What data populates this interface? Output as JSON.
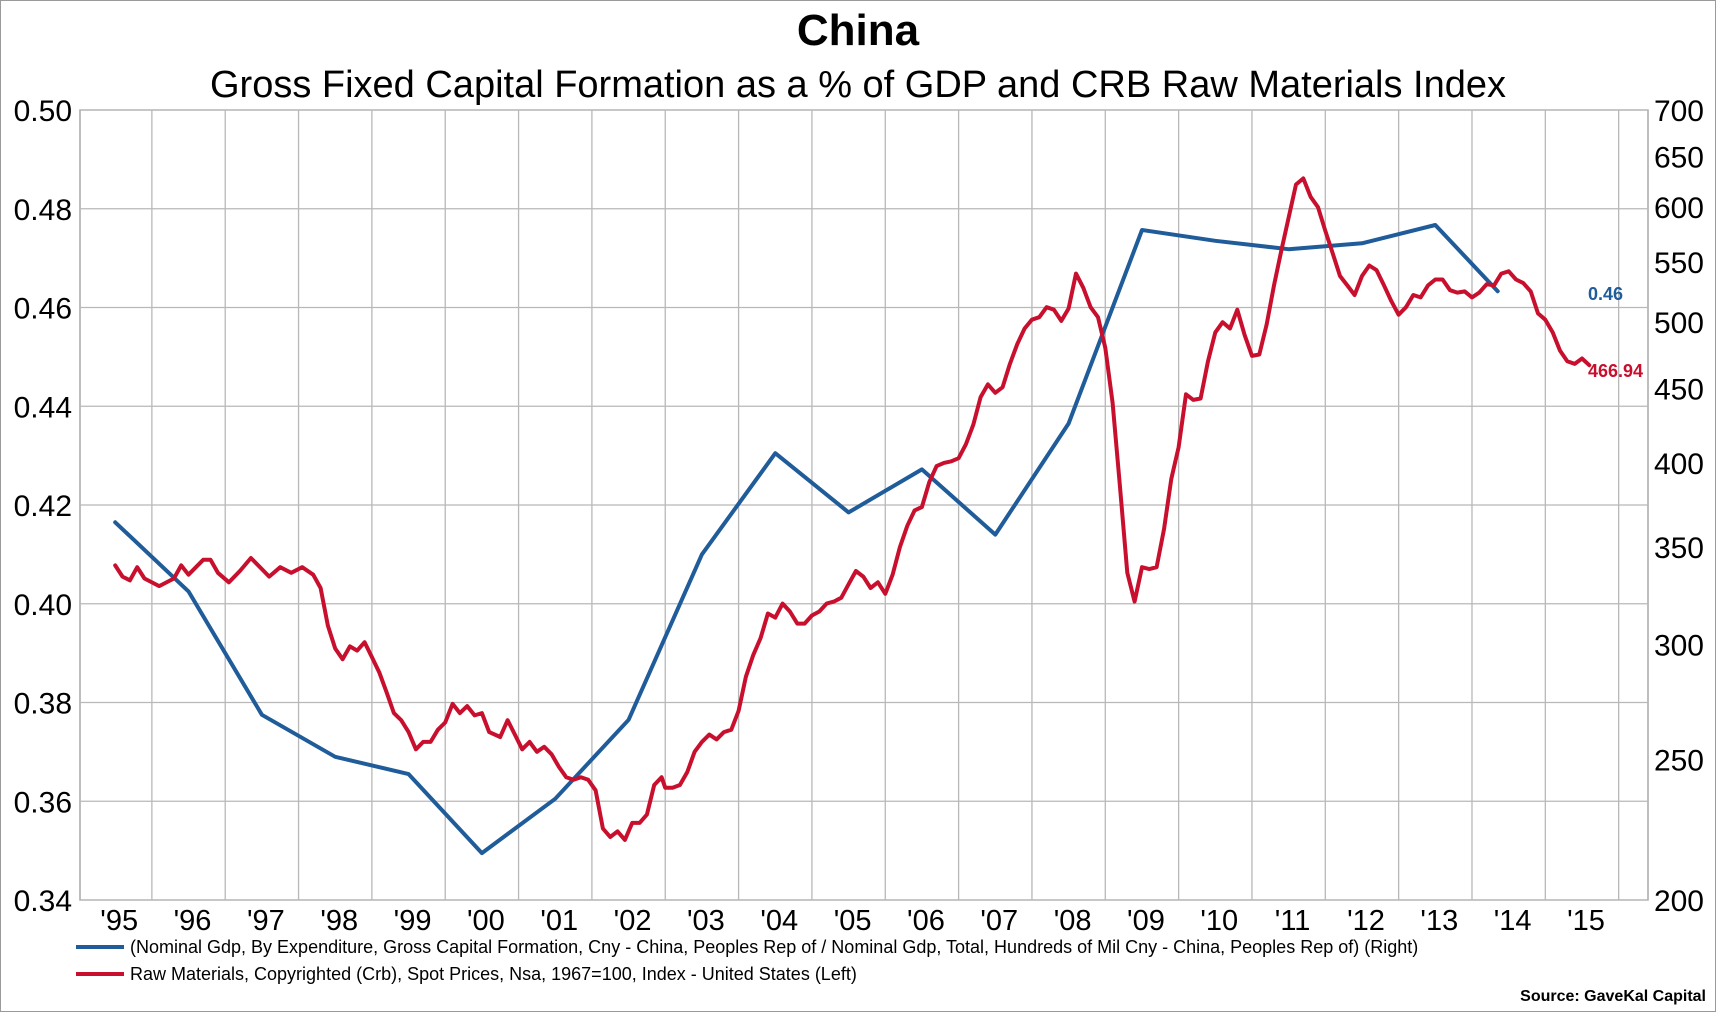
{
  "header": {
    "title": "China",
    "subtitle": "Gross Fixed Capital Formation as a % of GDP and CRB Raw Materials Index"
  },
  "source": "Source: GaveKal Capital",
  "colors": {
    "blue": "#1F5C99",
    "red": "#C8102E",
    "grid": "#b8b8b8"
  },
  "chart_data": {
    "type": "line",
    "grid": true,
    "legend_position": "bottom",
    "x_ticks": [
      "'95",
      "'96",
      "'97",
      "'98",
      "'99",
      "'00",
      "'01",
      "'02",
      "'03",
      "'04",
      "'05",
      "'06",
      "'07",
      "'08",
      "'09",
      "'10",
      "'11",
      "'12",
      "'13",
      "'14",
      "'15"
    ],
    "left_axis": {
      "ticks": [
        "0.50",
        "0.48",
        "0.46",
        "0.44",
        "0.42",
        "0.40",
        "0.38",
        "0.36",
        "0.34"
      ],
      "min": 0.34,
      "max": 0.5
    },
    "right_axis": {
      "ticks": [
        "700",
        "650",
        "600",
        "550",
        "500",
        "450",
        "400",
        "350",
        "300",
        "250",
        "200"
      ],
      "min": 200,
      "max": 700,
      "scale": "log"
    },
    "series": [
      {
        "name": "(Nominal Gdp, By Expenditure, Gross Capital Formation, Cny - China, Peoples Rep of / Nominal Gdp, Total, Hundreds of Mil Cny - China, Peoples Rep of)  (Right)",
        "axis": "left",
        "color": "#1F5C99",
        "end_label": "0.46",
        "points": [
          [
            1995.0,
            0.4165
          ],
          [
            1996.0,
            0.4025
          ],
          [
            1997.0,
            0.3775
          ],
          [
            1998.0,
            0.369
          ],
          [
            1999.0,
            0.3655
          ],
          [
            2000.0,
            0.3495
          ],
          [
            2001.0,
            0.3605
          ],
          [
            2002.0,
            0.3765
          ],
          [
            2003.0,
            0.41
          ],
          [
            2004.0,
            0.4305
          ],
          [
            2005.0,
            0.4185
          ],
          [
            2006.0,
            0.4272
          ],
          [
            2007.0,
            0.414
          ],
          [
            2008.0,
            0.4365
          ],
          [
            2009.0,
            0.4757
          ],
          [
            2010.0,
            0.4735
          ],
          [
            2011.0,
            0.4718
          ],
          [
            2012.0,
            0.473
          ],
          [
            2013.0,
            0.4767
          ],
          [
            2013.85,
            0.4633
          ]
        ]
      },
      {
        "name": "Raw Materials, Copyrighted (Crb), Spot Prices, Nsa, 1967=100, Index - United States  (Left)",
        "axis": "right",
        "color": "#C8102E",
        "end_label": "466.94",
        "points": [
          [
            1995.0,
            340
          ],
          [
            1995.1,
            334
          ],
          [
            1995.2,
            332
          ],
          [
            1995.3,
            339
          ],
          [
            1995.4,
            333
          ],
          [
            1995.6,
            329
          ],
          [
            1995.8,
            333
          ],
          [
            1995.9,
            340
          ],
          [
            1996.0,
            335
          ],
          [
            1996.2,
            343
          ],
          [
            1996.3,
            343
          ],
          [
            1996.4,
            336
          ],
          [
            1996.55,
            331
          ],
          [
            1996.7,
            337
          ],
          [
            1996.85,
            344
          ],
          [
            1997.0,
            338
          ],
          [
            1997.1,
            334
          ],
          [
            1997.25,
            339
          ],
          [
            1997.4,
            336
          ],
          [
            1997.55,
            339
          ],
          [
            1997.7,
            335
          ],
          [
            1997.8,
            328
          ],
          [
            1997.9,
            309
          ],
          [
            1998.0,
            298
          ],
          [
            1998.1,
            293
          ],
          [
            1998.2,
            299
          ],
          [
            1998.3,
            297
          ],
          [
            1998.4,
            301
          ],
          [
            1998.5,
            294
          ],
          [
            1998.6,
            287
          ],
          [
            1998.7,
            278
          ],
          [
            1998.8,
            269
          ],
          [
            1998.9,
            266
          ],
          [
            1999.0,
            261
          ],
          [
            1999.1,
            254
          ],
          [
            1999.2,
            257
          ],
          [
            1999.3,
            257
          ],
          [
            1999.4,
            262
          ],
          [
            1999.5,
            265
          ],
          [
            1999.6,
            273
          ],
          [
            1999.7,
            269
          ],
          [
            1999.8,
            272
          ],
          [
            1999.9,
            268
          ],
          [
            2000.0,
            269
          ],
          [
            2000.1,
            261
          ],
          [
            2000.25,
            259
          ],
          [
            2000.35,
            266
          ],
          [
            2000.45,
            260
          ],
          [
            2000.55,
            254
          ],
          [
            2000.65,
            257
          ],
          [
            2000.75,
            253
          ],
          [
            2000.85,
            255
          ],
          [
            2000.95,
            252
          ],
          [
            2001.05,
            247
          ],
          [
            2001.15,
            243
          ],
          [
            2001.25,
            242
          ],
          [
            2001.35,
            243
          ],
          [
            2001.45,
            242
          ],
          [
            2001.55,
            238
          ],
          [
            2001.65,
            224
          ],
          [
            2001.75,
            221
          ],
          [
            2001.85,
            223
          ],
          [
            2001.95,
            220
          ],
          [
            2002.05,
            226
          ],
          [
            2002.15,
            226
          ],
          [
            2002.25,
            229
          ],
          [
            2002.35,
            240
          ],
          [
            2002.45,
            243
          ],
          [
            2002.5,
            239
          ],
          [
            2002.6,
            239
          ],
          [
            2002.7,
            240
          ],
          [
            2002.8,
            245
          ],
          [
            2002.9,
            253
          ],
          [
            2003.0,
            257
          ],
          [
            2003.1,
            260
          ],
          [
            2003.2,
            258
          ],
          [
            2003.3,
            261
          ],
          [
            2003.4,
            262
          ],
          [
            2003.5,
            270
          ],
          [
            2003.6,
            285
          ],
          [
            2003.7,
            295
          ],
          [
            2003.8,
            303
          ],
          [
            2003.9,
            315
          ],
          [
            2004.0,
            313
          ],
          [
            2004.1,
            320
          ],
          [
            2004.2,
            316
          ],
          [
            2004.3,
            310
          ],
          [
            2004.4,
            310
          ],
          [
            2004.5,
            314
          ],
          [
            2004.6,
            316
          ],
          [
            2004.7,
            320
          ],
          [
            2004.8,
            321
          ],
          [
            2004.9,
            323
          ],
          [
            2005.0,
            330
          ],
          [
            2005.1,
            337
          ],
          [
            2005.2,
            334
          ],
          [
            2005.3,
            328
          ],
          [
            2005.4,
            331
          ],
          [
            2005.5,
            325
          ],
          [
            2005.6,
            335
          ],
          [
            2005.7,
            350
          ],
          [
            2005.8,
            362
          ],
          [
            2005.9,
            371
          ],
          [
            2006.0,
            373
          ],
          [
            2006.1,
            388
          ],
          [
            2006.2,
            398
          ],
          [
            2006.3,
            400
          ],
          [
            2006.4,
            401
          ],
          [
            2006.5,
            403
          ],
          [
            2006.6,
            412
          ],
          [
            2006.7,
            425
          ],
          [
            2006.8,
            444
          ],
          [
            2006.9,
            453
          ],
          [
            2007.0,
            447
          ],
          [
            2007.1,
            451
          ],
          [
            2007.2,
            468
          ],
          [
            2007.3,
            483
          ],
          [
            2007.4,
            495
          ],
          [
            2007.5,
            502
          ],
          [
            2007.6,
            504
          ],
          [
            2007.7,
            512
          ],
          [
            2007.8,
            510
          ],
          [
            2007.9,
            501
          ],
          [
            2008.0,
            511
          ],
          [
            2008.1,
            540
          ],
          [
            2008.2,
            528
          ],
          [
            2008.3,
            512
          ],
          [
            2008.4,
            504
          ],
          [
            2008.5,
            480
          ],
          [
            2008.6,
            440
          ],
          [
            2008.7,
            385
          ],
          [
            2008.8,
            336
          ],
          [
            2008.9,
            321
          ],
          [
            2009.0,
            339
          ],
          [
            2009.1,
            338
          ],
          [
            2009.2,
            339
          ],
          [
            2009.3,
            360
          ],
          [
            2009.4,
            390
          ],
          [
            2009.5,
            410
          ],
          [
            2009.6,
            446
          ],
          [
            2009.7,
            442
          ],
          [
            2009.8,
            443
          ],
          [
            2009.9,
            470
          ],
          [
            2010.0,
            492
          ],
          [
            2010.1,
            500
          ],
          [
            2010.2,
            495
          ],
          [
            2010.3,
            510
          ],
          [
            2010.4,
            490
          ],
          [
            2010.5,
            474
          ],
          [
            2010.6,
            475
          ],
          [
            2010.7,
            498
          ],
          [
            2010.8,
            530
          ],
          [
            2010.9,
            560
          ],
          [
            2011.0,
            590
          ],
          [
            2011.1,
            622
          ],
          [
            2011.2,
            628
          ],
          [
            2011.3,
            610
          ],
          [
            2011.4,
            600
          ],
          [
            2011.5,
            578
          ],
          [
            2011.6,
            558
          ],
          [
            2011.7,
            538
          ],
          [
            2011.8,
            530
          ],
          [
            2011.9,
            522
          ],
          [
            2012.0,
            538
          ],
          [
            2012.1,
            547
          ],
          [
            2012.2,
            543
          ],
          [
            2012.3,
            530
          ],
          [
            2012.4,
            517
          ],
          [
            2012.5,
            506
          ],
          [
            2012.6,
            512
          ],
          [
            2012.7,
            522
          ],
          [
            2012.8,
            520
          ],
          [
            2012.9,
            530
          ],
          [
            2013.0,
            535
          ],
          [
            2013.1,
            535
          ],
          [
            2013.2,
            526
          ],
          [
            2013.3,
            524
          ],
          [
            2013.4,
            525
          ],
          [
            2013.5,
            520
          ],
          [
            2013.6,
            524
          ],
          [
            2013.7,
            531
          ],
          [
            2013.8,
            530
          ],
          [
            2013.9,
            540
          ],
          [
            2014.0,
            542
          ],
          [
            2014.1,
            535
          ],
          [
            2014.2,
            532
          ],
          [
            2014.3,
            525
          ],
          [
            2014.4,
            507
          ],
          [
            2014.5,
            502
          ],
          [
            2014.6,
            492
          ],
          [
            2014.7,
            478
          ],
          [
            2014.8,
            470
          ],
          [
            2014.9,
            468
          ],
          [
            2015.0,
            472
          ],
          [
            2015.1,
            467
          ]
        ]
      }
    ]
  }
}
